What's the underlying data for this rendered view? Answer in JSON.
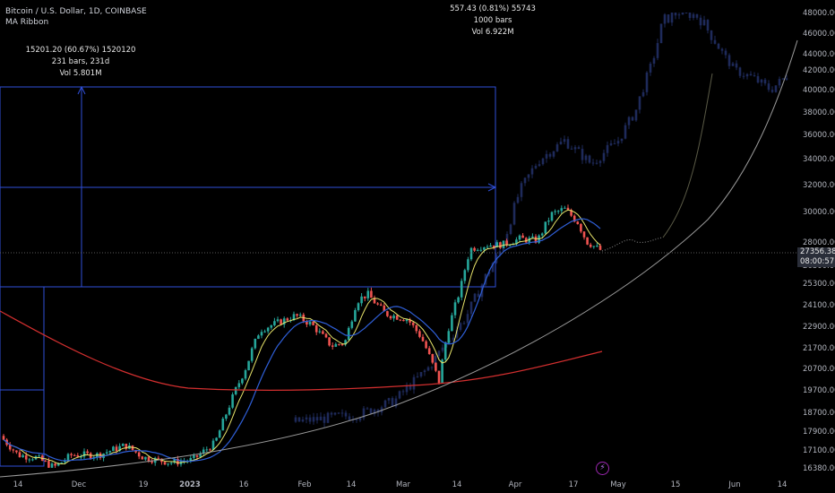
{
  "legend": {
    "symbol_line": "Bitcoin / U.S. Dollar, 1D, COINBASE",
    "indicator": "MA Ribbon"
  },
  "measure_left": {
    "line1": "15201.20 (60.67%) 1520120",
    "line2": "231 bars, 231d",
    "line3": "Vol 5.801M"
  },
  "measure_top": {
    "line1": "557.43 (0.81%) 55743",
    "line2": "1000 bars",
    "line3": "Vol 6.922M"
  },
  "last_price": {
    "value": "27356.38",
    "countdown": "08:00:57"
  },
  "price_scale": [
    "48000.00",
    "46000.00",
    "44000.00",
    "42000.00",
    "40000.00",
    "38000.00",
    "36000.00",
    "34000.00",
    "32000.00",
    "30000.00",
    "28000.00",
    "26300.00",
    "25300.00",
    "24100.00",
    "22900.00",
    "21700.00",
    "20700.00",
    "19700.00",
    "18700.00",
    "17900.00",
    "17100.00",
    "16380.00"
  ],
  "time_axis": [
    "14",
    "Dec",
    "19",
    "2023",
    "16",
    "Feb",
    "14",
    "Mar",
    "14",
    "Apr",
    "17",
    "May",
    "15",
    "Jun",
    "14"
  ],
  "colors": {
    "up": "#26a69a",
    "down": "#ef5350",
    "ma_fast": "#e8e46a",
    "ma_mid": "#2f5fd8",
    "ma_slow": "#d32f2f",
    "curve": "#9a9a9a",
    "box": "#2f4fd8",
    "ghost": "#1e2a5a"
  },
  "status_icon": "lightning-icon"
}
